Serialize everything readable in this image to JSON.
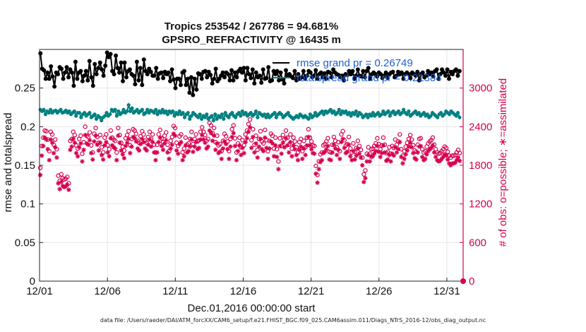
{
  "figure": {
    "footnote": "data file: /Users/raeder/DAI/ATM_forcXX/CAM6_setup/f.e21.FHIST_BGC.f09_025.CAM6assim.011/Diags_NTrS_2016-12/obs_diag_output.nc"
  },
  "chart_data": {
    "type": "line",
    "title": "Tropics 253542 / 267786 = 94.681%",
    "subtitle": "GPSRO_REFRACTIVITY @ 16435 m",
    "xlabel": "Dec.01,2016 00:00:00 start",
    "ylabel": "rmse and totalspread",
    "y2label": "# of obs: o=possible; ∗=assimilated",
    "xlim": [
      0,
      31.2
    ],
    "ylim": [
      0,
      0.3
    ],
    "y2lim": [
      0,
      3600
    ],
    "grid": true,
    "x_ticks": [
      0,
      5,
      10,
      15,
      20,
      25,
      30
    ],
    "x_tick_labels": [
      "12/01",
      "12/06",
      "12/11",
      "12/16",
      "12/21",
      "12/26",
      "12/31"
    ],
    "y_ticks": [
      0,
      0.05,
      0.1,
      0.15,
      0.2,
      0.25
    ],
    "y_tick_labels": [
      "0",
      "0.05",
      "0.1",
      "0.15",
      "0.2",
      "0.25"
    ],
    "y2_ticks": [
      0,
      600,
      1200,
      1800,
      2400,
      3000
    ],
    "y2_tick_labels": [
      "0",
      "600",
      "1200",
      "1800",
      "2400",
      "3000"
    ],
    "legend": [
      {
        "label": "rmse grand pr = 0.26749",
        "color": "#000000"
      },
      {
        "label": "totalspread grand pr = 0.21384",
        "color": "#008080"
      }
    ],
    "legend_position": "top-right",
    "series": [
      {
        "name": "rmse",
        "axis": "left",
        "color": "#000000",
        "values": [
          0.295,
          0.275,
          0.273,
          0.262,
          0.27,
          0.262,
          0.278,
          0.265,
          0.252,
          0.27,
          0.268,
          0.277,
          0.275,
          0.262,
          0.27,
          0.277,
          0.264,
          0.274,
          0.27,
          0.253,
          0.284,
          0.262,
          0.27,
          0.272,
          0.259,
          0.266,
          0.272,
          0.26,
          0.285,
          0.264,
          0.253,
          0.281,
          0.268,
          0.276,
          0.283,
          0.274,
          0.266,
          0.279,
          0.296,
          0.29,
          0.294,
          0.272,
          0.268,
          0.292,
          0.276,
          0.27,
          0.283,
          0.259,
          0.283,
          0.264,
          0.272,
          0.274,
          0.268,
          0.266,
          0.255,
          0.284,
          0.26,
          0.276,
          0.254,
          0.287,
          0.272,
          0.268,
          0.275,
          0.271,
          0.266,
          0.266,
          0.276,
          0.262,
          0.269,
          0.27,
          0.263,
          0.271,
          0.268,
          0.27,
          0.259,
          0.274,
          0.261,
          0.25,
          0.262,
          0.262,
          0.254,
          0.27,
          0.272,
          0.254,
          0.262,
          0.244,
          0.264,
          0.241,
          0.262,
          0.248,
          0.269,
          0.268,
          0.262,
          0.271,
          0.272,
          0.264,
          0.271,
          0.267,
          0.256,
          0.262,
          0.275,
          0.259,
          0.262,
          0.266,
          0.27,
          0.264,
          0.27,
          0.268,
          0.26,
          0.273,
          0.26,
          0.27,
          0.264,
          0.272,
          0.275,
          0.27,
          0.276,
          0.26,
          0.276,
          0.268,
          0.263,
          0.274,
          0.256,
          0.27,
          0.264,
          0.266,
          0.257,
          0.274,
          0.262,
          0.263,
          0.277,
          0.259,
          0.26,
          0.272,
          0.268,
          0.272,
          0.26,
          0.27,
          0.261,
          0.256,
          0.273,
          0.266,
          0.268,
          0.265,
          0.263,
          0.272,
          0.26,
          0.268,
          0.262,
          0.264,
          0.272,
          0.262,
          0.266,
          0.272,
          0.27,
          0.264,
          0.266,
          0.273,
          0.262,
          0.268,
          0.27,
          0.264,
          0.269,
          0.262,
          0.271,
          0.27,
          0.264,
          0.274,
          0.27,
          0.268,
          0.267,
          0.264,
          0.266,
          0.26,
          0.268,
          0.267,
          0.272,
          0.268,
          0.272,
          0.262,
          0.266,
          0.274,
          0.266,
          0.265,
          0.272,
          0.264,
          0.272,
          0.276,
          0.262,
          0.268,
          0.27,
          0.268,
          0.265,
          0.27,
          0.268,
          0.263,
          0.266,
          0.27,
          0.263,
          0.268,
          0.27,
          0.271,
          0.264,
          0.266,
          0.271,
          0.268,
          0.27,
          0.262,
          0.268,
          0.27,
          0.268,
          0.263,
          0.27,
          0.268,
          0.266,
          0.271,
          0.26,
          0.268,
          0.27,
          0.264,
          0.266,
          0.272,
          0.268,
          0.27,
          0.265,
          0.272,
          0.274,
          0.262,
          0.268,
          0.274,
          0.27,
          0.266,
          0.274,
          0.262,
          0.271,
          0.268,
          0.272,
          0.274,
          0.266,
          0.272
        ]
      },
      {
        "name": "totalspread",
        "axis": "left",
        "color": "#008080",
        "values": [
          0.222,
          0.22,
          0.222,
          0.216,
          0.22,
          0.218,
          0.222,
          0.218,
          0.22,
          0.221,
          0.218,
          0.22,
          0.222,
          0.218,
          0.219,
          0.221,
          0.218,
          0.22,
          0.216,
          0.218,
          0.22,
          0.214,
          0.218,
          0.218,
          0.212,
          0.216,
          0.218,
          0.214,
          0.216,
          0.218,
          0.212,
          0.214,
          0.216,
          0.21,
          0.214,
          0.212,
          0.208,
          0.212,
          0.214,
          0.218,
          0.214,
          0.216,
          0.222,
          0.22,
          0.222,
          0.214,
          0.22,
          0.216,
          0.218,
          0.222,
          0.218,
          0.22,
          0.228,
          0.22,
          0.224,
          0.218,
          0.22,
          0.222,
          0.218,
          0.22,
          0.222,
          0.216,
          0.218,
          0.222,
          0.218,
          0.221,
          0.22,
          0.218,
          0.222,
          0.216,
          0.22,
          0.218,
          0.222,
          0.218,
          0.22,
          0.216,
          0.22,
          0.218,
          0.22,
          0.214,
          0.218,
          0.216,
          0.22,
          0.216,
          0.218,
          0.212,
          0.216,
          0.218,
          0.21,
          0.214,
          0.218,
          0.216,
          0.214,
          0.212,
          0.216,
          0.21,
          0.214,
          0.212,
          0.216,
          0.21,
          0.212,
          0.214,
          0.208,
          0.216,
          0.21,
          0.214,
          0.212,
          0.216,
          0.21,
          0.218,
          0.214,
          0.212,
          0.216,
          0.218,
          0.214,
          0.212,
          0.216,
          0.218,
          0.214,
          0.22,
          0.216,
          0.218,
          0.214,
          0.216,
          0.218,
          0.214,
          0.216,
          0.22,
          0.212,
          0.218,
          0.216,
          0.214,
          0.216,
          0.212,
          0.216,
          0.212,
          0.214,
          0.216,
          0.218,
          0.212,
          0.216,
          0.218,
          0.216,
          0.212,
          0.214,
          0.216,
          0.218,
          0.214,
          0.212,
          0.21,
          0.212,
          0.214,
          0.212,
          0.216,
          0.214,
          0.212,
          0.214,
          0.212,
          0.21,
          0.216,
          0.212,
          0.214,
          0.218,
          0.214,
          0.216,
          0.218,
          0.22,
          0.216,
          0.22,
          0.218,
          0.22,
          0.222,
          0.218,
          0.22,
          0.216,
          0.218,
          0.222,
          0.216,
          0.22,
          0.218,
          0.22,
          0.216,
          0.218,
          0.214,
          0.218,
          0.216,
          0.22,
          0.214,
          0.218,
          0.216,
          0.212,
          0.214,
          0.216,
          0.212,
          0.216,
          0.214,
          0.218,
          0.214,
          0.216,
          0.218,
          0.214,
          0.216,
          0.22,
          0.216,
          0.218,
          0.22,
          0.214,
          0.218,
          0.22,
          0.216,
          0.218,
          0.22,
          0.216,
          0.218,
          0.222,
          0.218,
          0.216,
          0.22,
          0.214,
          0.216,
          0.218,
          0.22,
          0.216,
          0.218,
          0.214,
          0.216,
          0.218,
          0.214,
          0.216,
          0.212,
          0.214,
          0.218,
          0.216,
          0.214,
          0.212,
          0.216,
          0.218,
          0.214,
          0.216,
          0.22,
          0.218,
          0.216,
          0.22,
          0.218,
          0.216,
          0.214,
          0.218,
          0.212
        ]
      },
      {
        "name": "possible",
        "axis": "right",
        "color": "#d6004f",
        "marker": "o",
        "values": [
          1760,
          2100,
          2230,
          2340,
          2330,
          2200,
          2020,
          2320,
          2280,
          2120,
          2200,
          2050,
          1640,
          1560,
          1660,
          1600,
          1580,
          1590,
          1620,
          1520,
          2180,
          2210,
          2320,
          2270,
          2110,
          2060,
          2210,
          2260,
          1980,
          2160,
          2400,
          2260,
          2240,
          2310,
          2110,
          2000,
          2290,
          2380,
          2240,
          2150,
          2270,
          2080,
          2000,
          2230,
          2280,
          2110,
          2050,
          2340,
          2230,
          2200,
          2180,
          2000,
          2380,
          2270,
          2150,
          2090,
          2030,
          2220,
          2270,
          2330,
          2110,
          2210,
          2360,
          2340,
          2290,
          2180,
          2150,
          2250,
          2330,
          2280,
          2180,
          2150,
          2240,
          2320,
          2210,
          2280,
          2120,
          2000,
          2120,
          2280,
          2350,
          2220,
          2160,
          2260,
          2310,
          2120,
          2020,
          2180,
          2240,
          2410,
          2380,
          2150,
          2100,
          2250,
          2280,
          2000,
          2060,
          2230,
          2120,
          2140,
          2210,
          2320,
          2130,
          2210,
          2280,
          2170,
          2190,
          2320,
          2390,
          2320,
          2270,
          2180,
          2210,
          2460,
          2420,
          2300,
          2380,
          2160,
          2260,
          2110,
          2130,
          2020,
          2180,
          2290,
          2250,
          2170,
          2020,
          2210,
          2360,
          2420,
          2220,
          2000,
          2140,
          2230,
          2080,
          2190,
          2110,
          2280,
          2340,
          2440,
          2510,
          2190,
          2360,
          2120,
          2260,
          2040,
          2210,
          2330,
          2170,
          2140,
          2350,
          2190,
          2020,
          2180,
          2290,
          2260,
          2060,
          2230,
          2050,
          1860,
          2220,
          2100,
          2270,
          2200,
          2340,
          2230,
          2120,
          2280,
          2060,
          2230,
          2170,
          2080,
          2000,
          2160,
          2210,
          2020,
          2180,
          2080,
          2230,
          2360,
          2230,
          2170,
          2110,
          2100,
          1790,
          1650,
          1860,
          1970,
          2000,
          2110,
          2130,
          2170,
          2220,
          2010,
          2000,
          2120,
          2240,
          2180,
          2080,
          2160,
          2020,
          2280,
          2330,
          2190,
          2110,
          2130,
          2240,
          2060,
          2000,
          2140,
          2010,
          2070,
          2180,
          2100,
          2040,
          1920,
          1660,
          1720,
          1980,
          2080,
          1980,
          2050,
          2060,
          2100,
          2140,
          2220,
          2130,
          2050,
          2110,
          2230,
          2120,
          1990,
          2010,
          2080,
          1980,
          2100,
          2070,
          2200,
          2120,
          2170,
          2280,
          2050,
          1950,
          2020,
          2090,
          2150,
          2210,
          2270,
          2200,
          2110,
          2030,
          2010,
          2120,
          2210,
          2220,
          2050,
          2000,
          2020,
          2090,
          2140,
          2170,
          2190,
          2230,
          2120,
          2050,
          2000,
          1980,
          1990,
          2020,
          2050,
          2090,
          2070,
          2010,
          1950,
          1920,
          1950,
          1950,
          1960,
          2000,
          2040,
          1990
        ]
      },
      {
        "name": "assimilated",
        "axis": "right",
        "color": "#d6004f",
        "marker": "*",
        "values": [
          1650,
          1950,
          2100,
          2230,
          2200,
          2050,
          1880,
          2200,
          2150,
          1990,
          2080,
          1920,
          1520,
          1430,
          1540,
          1480,
          1460,
          1470,
          1500,
          1420,
          2040,
          2090,
          2210,
          2150,
          1990,
          1940,
          2080,
          2140,
          1860,
          2040,
          2270,
          2140,
          2120,
          2190,
          1990,
          1890,
          2170,
          2260,
          2120,
          2030,
          2150,
          1960,
          1890,
          2110,
          2160,
          2000,
          1940,
          2220,
          2110,
          2080,
          2060,
          1880,
          2260,
          2150,
          2030,
          1970,
          1910,
          2100,
          2150,
          2210,
          1990,
          2090,
          2240,
          2220,
          2170,
          2060,
          2030,
          2130,
          2210,
          2160,
          2060,
          2030,
          2120,
          2200,
          2090,
          2160,
          2000,
          1880,
          2000,
          2160,
          2230,
          2100,
          2040,
          2140,
          2190,
          2000,
          1900,
          2060,
          2120,
          2290,
          2260,
          2030,
          1980,
          2130,
          2160,
          1880,
          1940,
          2110,
          2000,
          2020,
          2090,
          2200,
          2010,
          2090,
          2160,
          2050,
          2070,
          2200,
          2270,
          2200,
          2150,
          2060,
          2090,
          2340,
          2300,
          2180,
          2260,
          2040,
          2140,
          1990,
          2010,
          1900,
          2060,
          2170,
          2130,
          2050,
          1900,
          2090,
          2240,
          2300,
          2100,
          1880,
          2020,
          2110,
          1960,
          2070,
          1990,
          2160,
          2220,
          2320,
          2390,
          2070,
          2240,
          2000,
          2140,
          1920,
          2090,
          2210,
          2050,
          2020,
          2230,
          2070,
          1900,
          2060,
          2170,
          2140,
          1940,
          2110,
          1930,
          1740,
          2100,
          1980,
          2150,
          2080,
          2220,
          2110,
          2000,
          2160,
          1940,
          2110,
          2050,
          1960,
          1880,
          2040,
          2090,
          1900,
          2060,
          1960,
          2110,
          2240,
          2110,
          2050,
          1990,
          1980,
          1670,
          1530,
          1740,
          1850,
          1880,
          1990,
          2010,
          2050,
          2100,
          1890,
          1880,
          2000,
          2120,
          2060,
          1960,
          2040,
          1900,
          2160,
          2210,
          2070,
          1990,
          2010,
          2120,
          1940,
          1880,
          2020,
          1890,
          1950,
          2060,
          1980,
          1920,
          1800,
          1540,
          1600,
          1860,
          1960,
          1860,
          1930,
          1940,
          1980,
          2020,
          2100,
          2010,
          1930,
          1990,
          2110,
          2000,
          1870,
          1890,
          1960,
          1860,
          1980,
          1950,
          2080,
          2000,
          2050,
          2160,
          1930,
          1830,
          1900,
          1970,
          2030,
          2090,
          2150,
          2080,
          1990,
          1910,
          1890,
          2000,
          2090,
          2100,
          1930,
          1880,
          1900,
          1970,
          2020,
          2050,
          2070,
          2110,
          2000,
          1930,
          1880,
          1860,
          1870,
          1900,
          1930,
          1970,
          1950,
          1890,
          1830,
          1800,
          1830,
          1830,
          1840,
          1880,
          1920,
          1870
        ]
      }
    ]
  }
}
